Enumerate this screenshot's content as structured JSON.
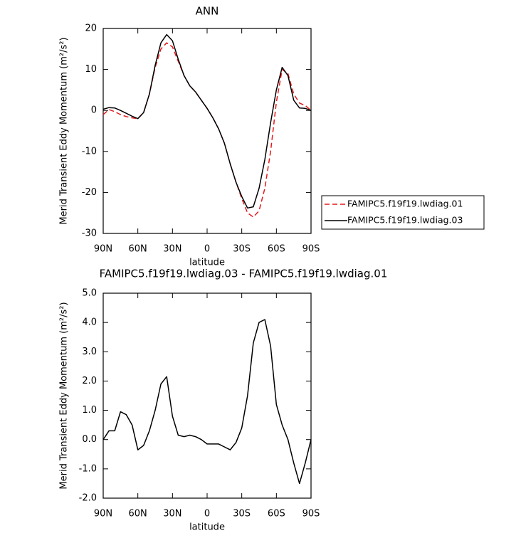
{
  "chart_data": [
    {
      "type": "line",
      "title": "ANN",
      "xlabel": "latitude",
      "ylabel": "Merid Transient Eddy Momentum (m²/s²)",
      "x": [
        90,
        85,
        80,
        75,
        70,
        65,
        60,
        55,
        50,
        45,
        40,
        35,
        30,
        25,
        20,
        15,
        10,
        5,
        0,
        -5,
        -10,
        -15,
        -20,
        -25,
        -30,
        -35,
        -40,
        -45,
        -50,
        -55,
        -60,
        -65,
        -70,
        -75,
        -80,
        -85,
        -90
      ],
      "series": [
        {
          "name": "FAMIPC5.f19f19.lwdiag.01",
          "color": "#e41a1c",
          "dash": "dashed",
          "values": [
            -1,
            0.2,
            -0.3,
            -1,
            -1.5,
            -1.8,
            -2,
            -0.5,
            4,
            10.5,
            15,
            16.5,
            15.5,
            12,
            8.5,
            6,
            4.5,
            2.5,
            0.5,
            -1.8,
            -4.5,
            -8,
            -13,
            -17.5,
            -21.5,
            -25,
            -26,
            -24.5,
            -19,
            -10,
            2,
            10,
            9,
            4,
            1.8,
            1.2,
            0
          ]
        },
        {
          "name": "FAMIPC5.f19f19.lwdiag.03",
          "color": "#000000",
          "dash": "solid",
          "values": [
            0.3,
            0.7,
            0.6,
            0,
            -0.7,
            -1.4,
            -2,
            -0.5,
            4,
            11,
            16.5,
            18.5,
            17,
            12.5,
            8.5,
            6,
            4.5,
            2.5,
            0.5,
            -1.8,
            -4.5,
            -8,
            -13,
            -17.5,
            -21,
            -23.8,
            -23.5,
            -19,
            -12,
            -3,
            5,
            10.5,
            8.5,
            2.5,
            0.6,
            0.5,
            0
          ]
        }
      ],
      "xlim": [
        90,
        -90
      ],
      "xticks": [
        {
          "value": 90,
          "label": "90N"
        },
        {
          "value": 60,
          "label": "60N"
        },
        {
          "value": 30,
          "label": "30N"
        },
        0,
        {
          "value": -30,
          "label": "30S"
        },
        {
          "value": -60,
          "label": "60S"
        },
        {
          "value": -90,
          "label": "90S"
        }
      ],
      "ylim": [
        -30,
        20
      ],
      "yticks": [
        20,
        10,
        0,
        -10,
        -20,
        -30
      ],
      "legend": "right"
    },
    {
      "type": "line",
      "title": "FAMIPC5.f19f19.lwdiag.03 - FAMIPC5.f19f19.lwdiag.01",
      "xlabel": "latitude",
      "ylabel": "Merid Transient Eddy Momentum (m²/s²)",
      "x": [
        90,
        85,
        80,
        75,
        70,
        65,
        60,
        55,
        50,
        45,
        40,
        35,
        30,
        25,
        20,
        15,
        10,
        5,
        0,
        -5,
        -10,
        -15,
        -20,
        -25,
        -30,
        -35,
        -40,
        -45,
        -50,
        -55,
        -60,
        -65,
        -70,
        -75,
        -80,
        -85,
        -90
      ],
      "series": [
        {
          "color": "#000000",
          "dash": "solid",
          "values": [
            0,
            0.3,
            0.3,
            0.95,
            0.85,
            0.5,
            -0.35,
            -0.2,
            0.3,
            1.0,
            1.9,
            2.15,
            0.8,
            0.15,
            0.1,
            0.15,
            0.1,
            0,
            -0.15,
            -0.15,
            -0.15,
            -0.25,
            -0.35,
            -0.1,
            0.4,
            1.5,
            3.3,
            4.0,
            4.1,
            3.2,
            1.2,
            0.5,
            0,
            -0.8,
            -1.5,
            -0.8,
            0
          ]
        }
      ],
      "xlim": [
        90,
        -90
      ],
      "xticks": [
        {
          "value": 90,
          "label": "90N"
        },
        {
          "value": 60,
          "label": "60N"
        },
        {
          "value": 30,
          "label": "30N"
        },
        0,
        {
          "value": -30,
          "label": "30S"
        },
        {
          "value": -60,
          "label": "60S"
        },
        {
          "value": -90,
          "label": "90S"
        }
      ],
      "ylim": [
        -2,
        5
      ],
      "yticks": [
        {
          "value": 5,
          "label": "5.0"
        },
        {
          "value": 4,
          "label": "4.0"
        },
        {
          "value": 3,
          "label": "3.0"
        },
        {
          "value": 2,
          "label": "2.0"
        },
        {
          "value": 1,
          "label": "1.0"
        },
        {
          "value": 0,
          "label": "0.0"
        },
        {
          "value": -1,
          "label": "-1.0"
        },
        {
          "value": -2,
          "label": "-2.0"
        }
      ]
    }
  ]
}
